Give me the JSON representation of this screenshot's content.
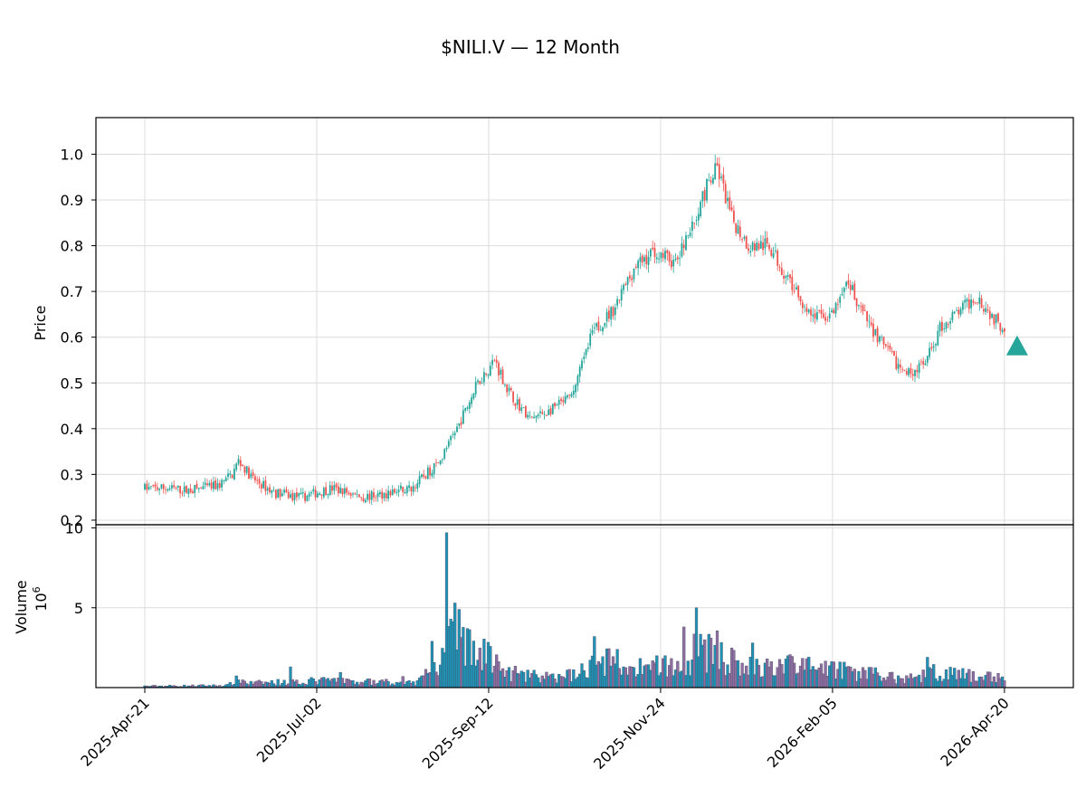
{
  "chart_data": {
    "type": "candlestick",
    "title": "$NILI.V — 12 Month",
    "price_panel": {
      "ylabel": "Price",
      "ylim": [
        0.19,
        1.08
      ],
      "yticks": [
        0.2,
        0.3,
        0.4,
        0.5,
        0.6,
        0.7,
        0.8,
        0.9,
        1.0
      ],
      "ytick_labels": [
        "0.2",
        "0.3",
        "0.4",
        "0.5",
        "0.6",
        "0.7",
        "0.8",
        "0.9",
        "1.0"
      ],
      "grid": true
    },
    "volume_panel": {
      "ylabel": "Volume",
      "yunit": "10^6",
      "ylim": [
        0,
        10.2
      ],
      "yticks": [
        5,
        10
      ],
      "ytick_labels": [
        "5",
        "10"
      ],
      "grid": true
    },
    "xlabels": [
      "2025-Apr-21",
      "2025-Jul-02",
      "2025-Sep-12",
      "2025-Nov-24",
      "2026-Feb-05",
      "2026-Apr-20"
    ],
    "colors": {
      "up": "#26a69a",
      "down": "#ef5350",
      "volume_up": "#1f93b4",
      "volume_down": "#8f6f9f",
      "volume_edge": "#4a4a6a",
      "marker": "#26a69a",
      "grid": "#dcdcdc"
    },
    "marker": {
      "shape": "triangle-up",
      "date": "2026-Apr-20",
      "price": 0.58
    },
    "anchors": [
      [
        0,
        0.27
      ],
      [
        10,
        0.27
      ],
      [
        20,
        0.265
      ],
      [
        35,
        0.275
      ],
      [
        42,
        0.3
      ],
      [
        45,
        0.33
      ],
      [
        52,
        0.29
      ],
      [
        62,
        0.26
      ],
      [
        75,
        0.25
      ],
      [
        90,
        0.27
      ],
      [
        105,
        0.25
      ],
      [
        118,
        0.26
      ],
      [
        128,
        0.27
      ],
      [
        135,
        0.3
      ],
      [
        142,
        0.33
      ],
      [
        150,
        0.4
      ],
      [
        160,
        0.5
      ],
      [
        168,
        0.55
      ],
      [
        175,
        0.48
      ],
      [
        185,
        0.42
      ],
      [
        195,
        0.44
      ],
      [
        205,
        0.47
      ],
      [
        215,
        0.61
      ],
      [
        225,
        0.66
      ],
      [
        235,
        0.75
      ],
      [
        245,
        0.79
      ],
      [
        255,
        0.76
      ],
      [
        262,
        0.83
      ],
      [
        270,
        0.93
      ],
      [
        275,
        0.97
      ],
      [
        282,
        0.86
      ],
      [
        290,
        0.8
      ],
      [
        300,
        0.8
      ],
      [
        310,
        0.72
      ],
      [
        320,
        0.65
      ],
      [
        330,
        0.645
      ],
      [
        338,
        0.72
      ],
      [
        345,
        0.65
      ],
      [
        355,
        0.58
      ],
      [
        365,
        0.52
      ],
      [
        375,
        0.54
      ],
      [
        382,
        0.62
      ],
      [
        392,
        0.66
      ],
      [
        400,
        0.69
      ],
      [
        408,
        0.64
      ],
      [
        413,
        0.62
      ]
    ],
    "volume_profile": [
      [
        0,
        0.1
      ],
      [
        40,
        0.15
      ],
      [
        45,
        0.6
      ],
      [
        50,
        0.3
      ],
      [
        70,
        0.4
      ],
      [
        90,
        0.5
      ],
      [
        110,
        0.4
      ],
      [
        130,
        0.3
      ],
      [
        140,
        1.5
      ],
      [
        150,
        3.5
      ],
      [
        160,
        2.5
      ],
      [
        175,
        1.0
      ],
      [
        200,
        0.6
      ],
      [
        215,
        1.8
      ],
      [
        230,
        1.6
      ],
      [
        240,
        1.4
      ],
      [
        255,
        1.5
      ],
      [
        265,
        2.4
      ],
      [
        275,
        2.6
      ],
      [
        285,
        1.4
      ],
      [
        300,
        1.4
      ],
      [
        320,
        1.5
      ],
      [
        330,
        1.3
      ],
      [
        350,
        1.0
      ],
      [
        365,
        0.6
      ],
      [
        380,
        1.1
      ],
      [
        395,
        0.8
      ],
      [
        413,
        0.7
      ]
    ],
    "volume_spikes": [
      [
        70,
        1.3
      ],
      [
        94,
        0.95
      ],
      [
        124,
        0.7
      ],
      [
        138,
        2.9
      ],
      [
        145,
        9.7
      ],
      [
        147,
        4.3
      ],
      [
        149,
        5.3
      ],
      [
        151,
        4.9
      ],
      [
        155,
        3.7
      ],
      [
        210,
        1.5
      ],
      [
        216,
        3.2
      ],
      [
        227,
        2.4
      ],
      [
        246,
        2.0
      ],
      [
        259,
        3.8
      ],
      [
        265,
        5.0
      ],
      [
        269,
        3.0
      ],
      [
        292,
        2.8
      ],
      [
        309,
        2.0
      ],
      [
        339,
        1.3
      ],
      [
        376,
        1.9
      ]
    ]
  }
}
